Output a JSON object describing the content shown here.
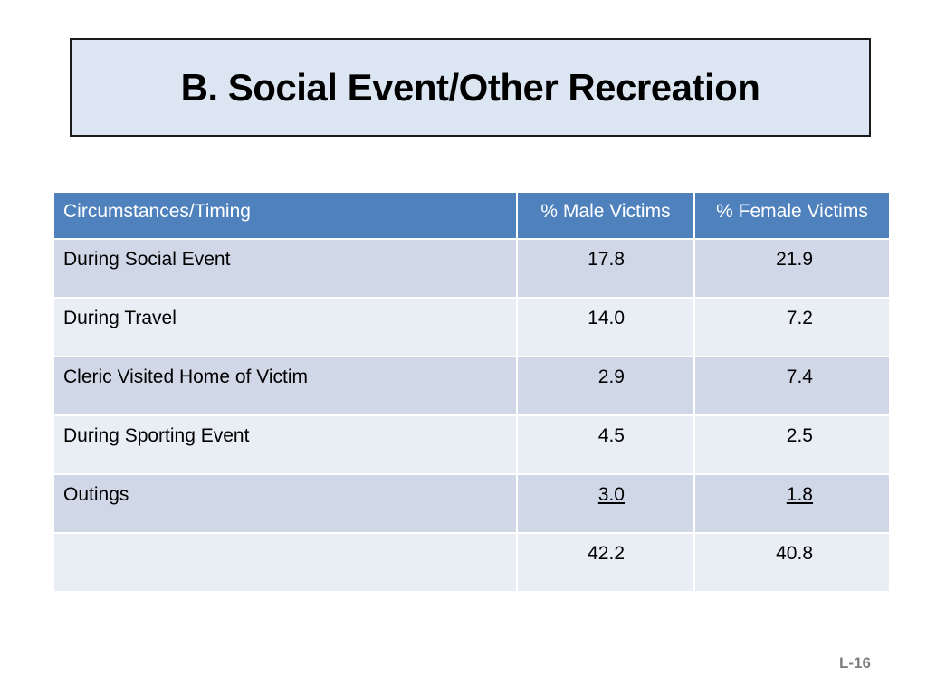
{
  "slide": {
    "title": "B.  Social Event/Other Recreation",
    "page_number": "L-16"
  },
  "table": {
    "headers": [
      "Circumstances/Timing",
      "% Male Victims",
      "% Female Victims"
    ],
    "rows": [
      {
        "label": "During Social Event",
        "male": "17.8",
        "female": "21.9"
      },
      {
        "label": "During Travel",
        "male": "14.0",
        "female": "7.2"
      },
      {
        "label": "Cleric Visited Home of Victim",
        "male": "2.9",
        "female": "7.4"
      },
      {
        "label": "During Sporting Event",
        "male": "4.5",
        "female": "2.5"
      },
      {
        "label": "Outings",
        "male": "3.0",
        "female": "1.8"
      },
      {
        "label": "",
        "male": "42.2",
        "female": "40.8"
      }
    ]
  },
  "colors": {
    "title_fill": "#dce6f2",
    "header_fill": "#4f81bd",
    "row_odd": "#d0d8e8",
    "row_even": "#e9edf4"
  }
}
